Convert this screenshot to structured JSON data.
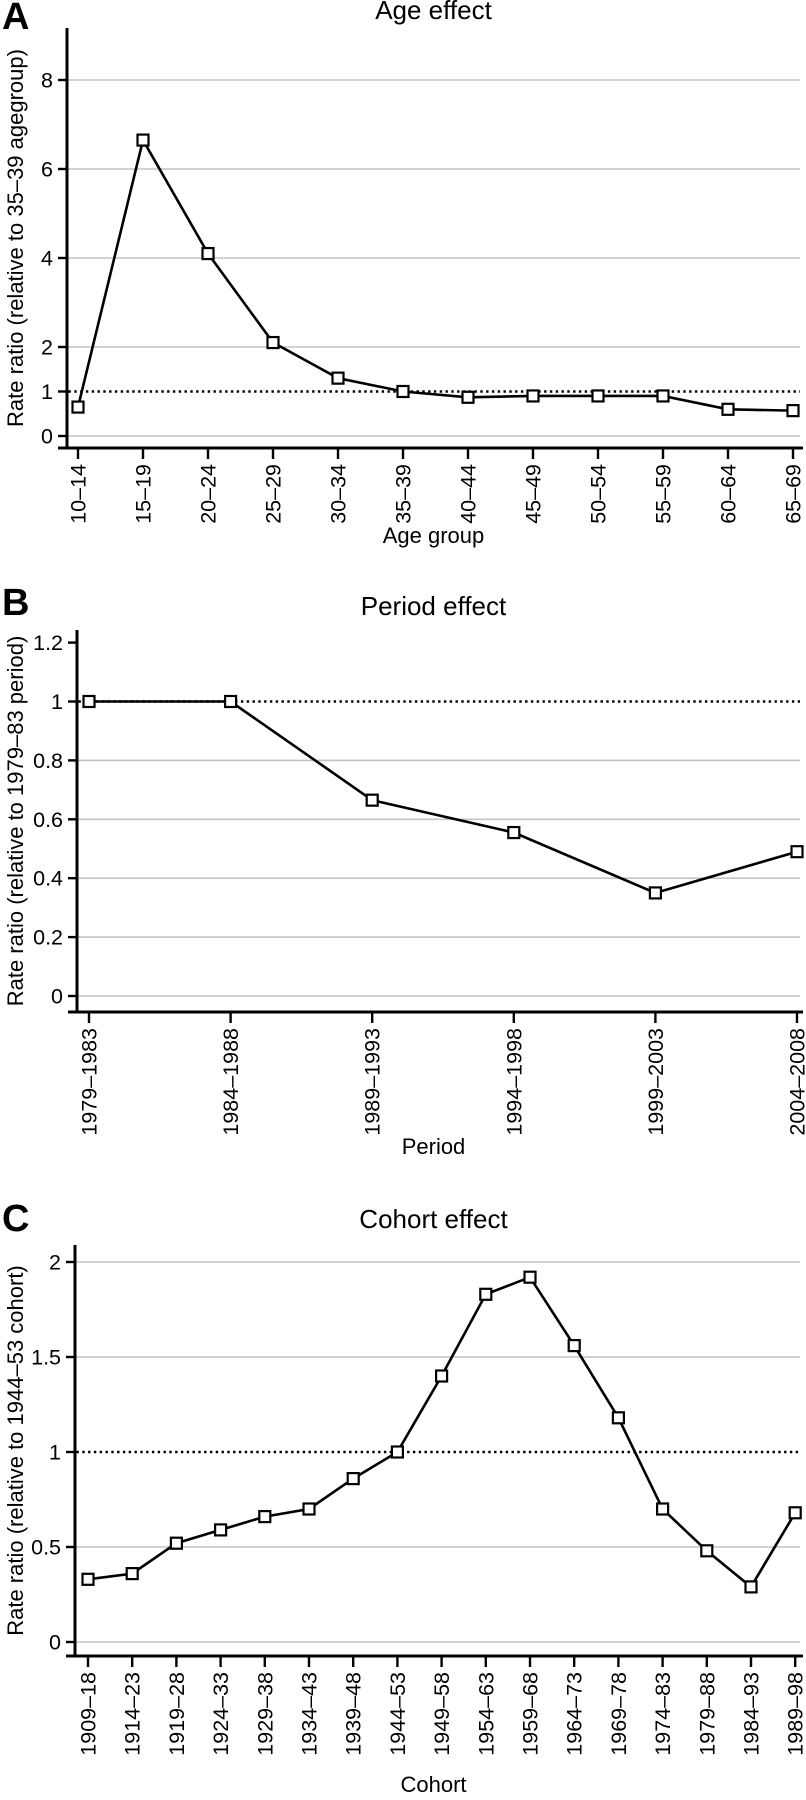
{
  "chart_data": [
    {
      "panel_label": "A",
      "type": "line",
      "title": "Age effect",
      "xlabel": "Age group",
      "ylabel": "Rate ratio (relative to 35–39 agegroup)",
      "categories": [
        "10–14",
        "15–19",
        "20–24",
        "25–29",
        "30–34",
        "35–39",
        "40–44",
        "45–49",
        "50–54",
        "55–59",
        "60–64",
        "65–69"
      ],
      "values": [
        0.65,
        6.65,
        4.1,
        2.1,
        1.3,
        1.0,
        0.87,
        0.9,
        0.9,
        0.9,
        0.6,
        0.57
      ],
      "yticks": [
        0,
        1,
        2,
        4,
        6,
        8
      ],
      "gridline_values": [
        0,
        2,
        4,
        6,
        8
      ],
      "reference_line": 1.0,
      "ylim": [
        0,
        9.2
      ],
      "legend": "none",
      "grid": "horizontal",
      "marker": "open-square",
      "line_color": "#000000",
      "grid_color": "#c4c4c4"
    },
    {
      "panel_label": "B",
      "type": "line",
      "title": "Period effect",
      "xlabel": "Period",
      "ylabel": "Rate ratio (relative to 1979–83 period)",
      "categories": [
        "1979–1983",
        "1984–1988",
        "1989–1993",
        "1994–1998",
        "1999–2003",
        "2004–2008"
      ],
      "values": [
        1.0,
        1.0,
        0.665,
        0.555,
        0.35,
        0.49
      ],
      "yticks": [
        0,
        0.2,
        0.4,
        0.6,
        0.8,
        1,
        1.2
      ],
      "gridline_values": [
        0,
        0.2,
        0.4,
        0.6,
        0.8
      ],
      "reference_line": 1.0,
      "ylim": [
        0,
        1.3
      ],
      "legend": "none",
      "grid": "horizontal",
      "marker": "open-square",
      "line_color": "#000000",
      "grid_color": "#c4c4c4"
    },
    {
      "panel_label": "C",
      "type": "line",
      "title": "Cohort effect",
      "xlabel": "Cohort",
      "ylabel": "Rate ratio (relative to 1944–53 cohort)",
      "categories": [
        "1909–18",
        "1914–23",
        "1919–28",
        "1924–33",
        "1929–38",
        "1934–43",
        "1939–48",
        "1944–53",
        "1949–58",
        "1954–63",
        "1959–68",
        "1964–73",
        "1969–78",
        "1974–83",
        "1979–88",
        "1984–93",
        "1989–98"
      ],
      "values": [
        0.33,
        0.36,
        0.52,
        0.59,
        0.66,
        0.7,
        0.86,
        1.0,
        1.4,
        1.83,
        1.92,
        1.56,
        1.18,
        0.7,
        0.48,
        0.29,
        0.68
      ],
      "yticks": [
        0,
        0.5,
        1,
        1.5,
        2
      ],
      "gridline_values": [
        0,
        0.5,
        1.5,
        2
      ],
      "reference_line": 1.0,
      "ylim": [
        0,
        2.1
      ],
      "legend": "none",
      "grid": "horizontal",
      "marker": "open-square",
      "line_color": "#000000",
      "grid_color": "#c4c4c4"
    }
  ]
}
